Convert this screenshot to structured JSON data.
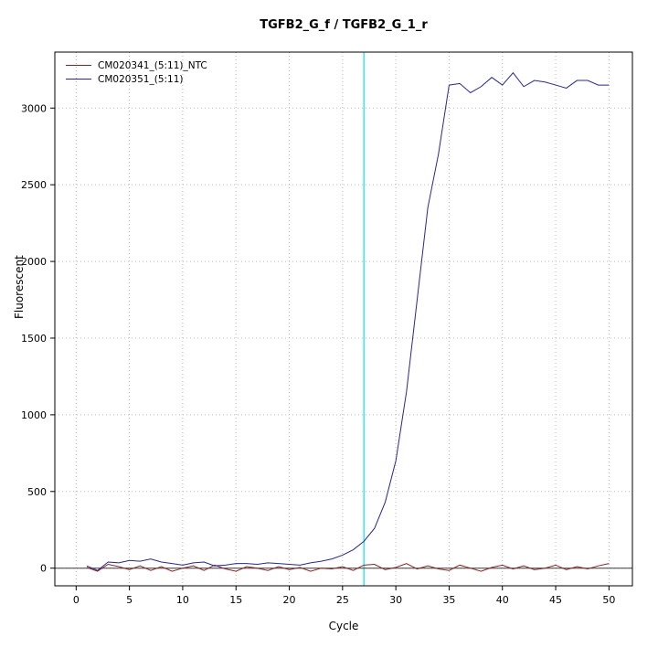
{
  "title": "TGFB2_G_f / TGFB2_G_1_r",
  "xlabel": "Cycle",
  "ylabel": "Fluorescent",
  "legend": {
    "items": [
      {
        "label": "CM020341_(5:11)_NTC",
        "color": "#8b2323"
      },
      {
        "label": "CM020351_(5:11)",
        "color": "#28288f"
      }
    ]
  },
  "chart_data": {
    "type": "line",
    "title": "TGFB2_G_f / TGFB2_G_1_r",
    "xlabel": "Cycle",
    "ylabel": "Fluorescent",
    "grid": true,
    "grid_color": "#bbbbbb",
    "legend_position": "top-left",
    "box_color": "#000000",
    "baseline_y": 0,
    "baseline_color": "#3a3a3a",
    "threshold_x": 27,
    "threshold_color": "#00e5e5",
    "xdomain": [
      -2,
      52.2
    ],
    "ydomain": [
      -115,
      3365
    ],
    "xticks": [
      0,
      5,
      10,
      15,
      20,
      25,
      30,
      35,
      40,
      45,
      50
    ],
    "yticks": [
      0,
      500,
      1000,
      1500,
      2000,
      2500,
      3000
    ],
    "x": [
      1,
      2,
      3,
      4,
      5,
      6,
      7,
      8,
      9,
      10,
      11,
      12,
      13,
      14,
      15,
      16,
      17,
      18,
      19,
      20,
      21,
      22,
      23,
      24,
      25,
      26,
      27,
      28,
      29,
      30,
      31,
      32,
      33,
      34,
      35,
      36,
      37,
      38,
      39,
      40,
      41,
      42,
      43,
      44,
      45,
      46,
      47,
      48,
      49,
      50
    ],
    "series": [
      {
        "name": "CM020341_(5:11)_NTC",
        "color": "#8b2323",
        "values": [
          5,
          -20,
          25,
          10,
          -10,
          15,
          -15,
          10,
          -20,
          0,
          15,
          -15,
          20,
          -5,
          -20,
          10,
          0,
          -15,
          10,
          -10,
          5,
          -20,
          0,
          -5,
          10,
          -15,
          20,
          25,
          -10,
          5,
          30,
          -5,
          15,
          -5,
          -15,
          20,
          0,
          -20,
          5,
          20,
          -5,
          15,
          -10,
          0,
          20,
          -10,
          10,
          -5,
          15,
          30
        ]
      },
      {
        "name": "CM020351_(5:11)",
        "color": "#28288f",
        "values": [
          15,
          -15,
          40,
          35,
          50,
          45,
          60,
          40,
          30,
          20,
          35,
          40,
          15,
          20,
          30,
          30,
          25,
          35,
          30,
          25,
          20,
          35,
          45,
          60,
          85,
          120,
          175,
          260,
          430,
          700,
          1150,
          1750,
          2350,
          2700,
          3150,
          3160,
          3100,
          3140,
          3200,
          3150,
          3230,
          3140,
          3180,
          3170,
          3150,
          3130,
          3180,
          3180,
          3150,
          3150
        ]
      }
    ]
  }
}
